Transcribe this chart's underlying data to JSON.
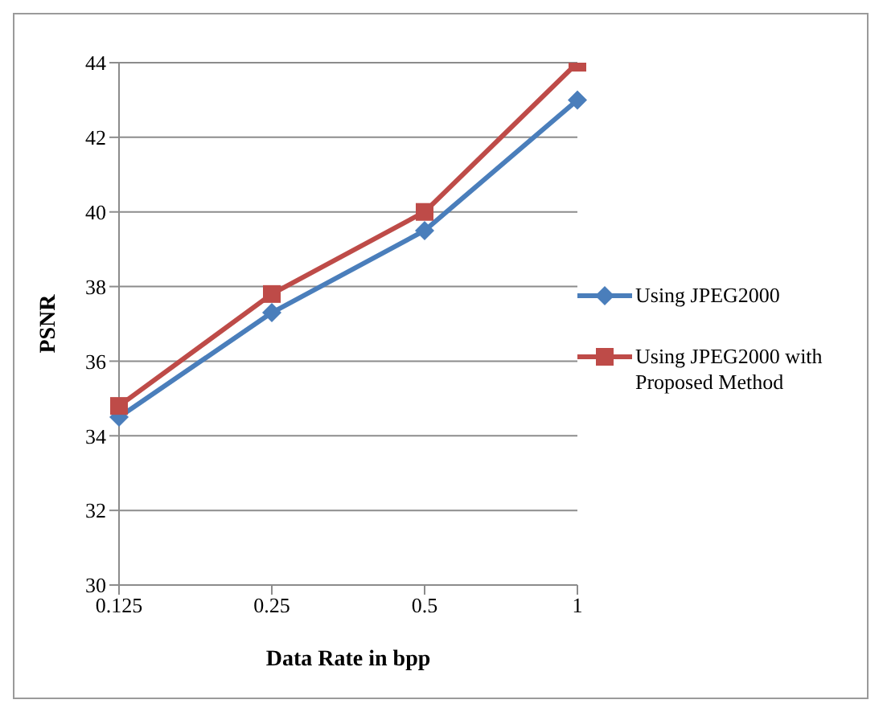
{
  "chart_data": {
    "type": "line",
    "xlabel": "Data Rate in bpp",
    "ylabel": "PSNR",
    "categories": [
      "0.125",
      "0.25",
      "0.5",
      "1"
    ],
    "series": [
      {
        "name": "Using JPEG2000",
        "color": "#4a7ebb",
        "values": [
          34.5,
          37.3,
          39.5,
          43.0
        ],
        "marker": "diamond"
      },
      {
        "name": "Using JPEG2000 with Proposed Method",
        "color": "#be4b48",
        "values": [
          34.8,
          37.8,
          40.0,
          44.0
        ],
        "marker": "square"
      }
    ],
    "ylim": [
      30,
      44
    ],
    "yticks": [
      30,
      32,
      34,
      36,
      38,
      40,
      42,
      44
    ],
    "grid": "y",
    "legend": "right",
    "line_style": "solid"
  }
}
